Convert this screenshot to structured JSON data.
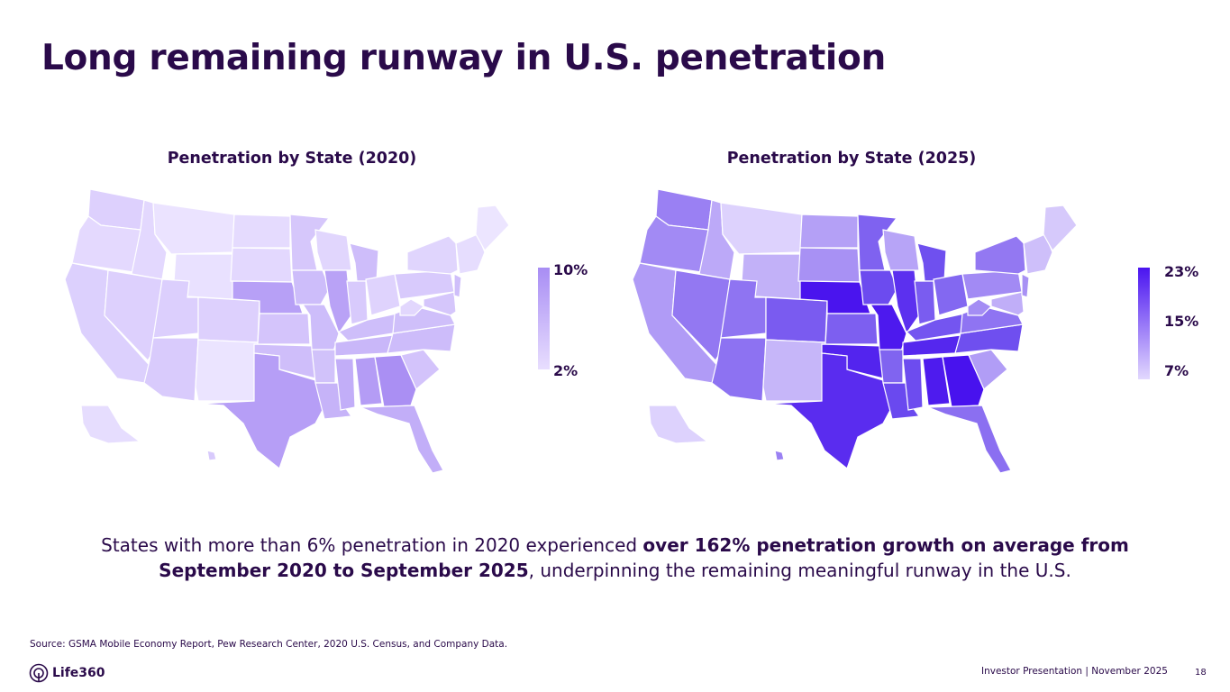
{
  "slide": {
    "title": "Long remaining runway in U.S. penetration",
    "body": {
      "lead": "States with more than 6% penetration in 2020 experienced ",
      "bold1": "over 162% penetration growth on average from September 2020 to September 2025",
      "tail": ", underpinning the remaining meaningful runway in the U.S."
    },
    "source": "Source: GSMA Mobile Economy Report, Pew Research Center, 2020 U.S. Census, and Company Data.",
    "logo_text": "Life360",
    "footer": "Investor Presentation  | November 2025",
    "page_number": "18"
  },
  "maps": [
    {
      "title": "Penetration by State (2020)",
      "legend": {
        "max_label": "10%",
        "min_label": "2%",
        "max_color": "#a88df4",
        "min_color": "#e8defe"
      }
    },
    {
      "title": "Penetration by State (2025)",
      "legend": {
        "max_label": "23%",
        "mid_label": "15%",
        "min_label": "7%",
        "max_color": "#4a14f0",
        "min_color": "#e2d8fe"
      }
    }
  ]
}
